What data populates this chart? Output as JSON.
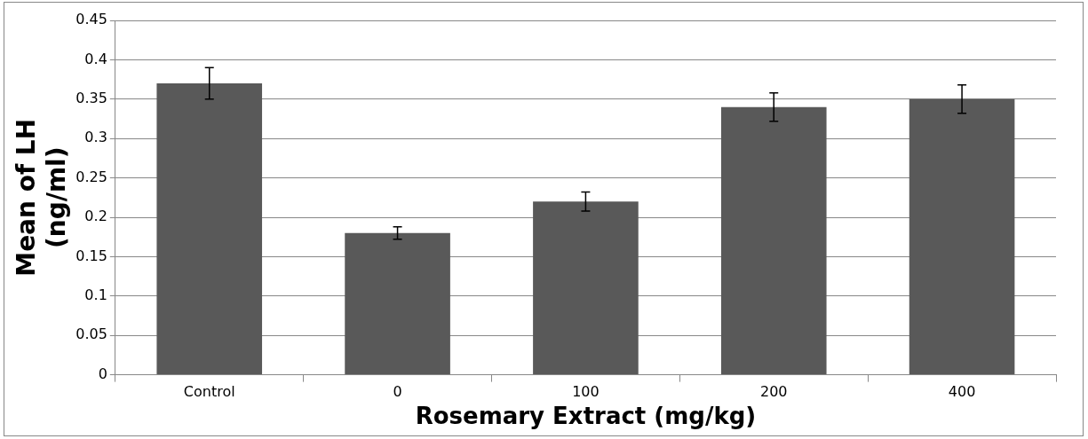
{
  "chart_data": {
    "type": "bar",
    "xlabel": "Rosemary Extract (mg/kg)",
    "ylabel": "Mean of LH (ng/ml)",
    "categories": [
      "Control",
      "0",
      "100",
      "200",
      "400"
    ],
    "values": [
      0.37,
      0.18,
      0.22,
      0.34,
      0.35
    ],
    "errors": [
      0.02,
      0.008,
      0.012,
      0.018,
      0.018
    ],
    "color": "#595959",
    "ylim": [
      0,
      0.45
    ],
    "yticks": [
      0,
      0.05,
      0.1,
      0.15,
      0.2,
      0.25,
      0.3,
      0.35,
      0.4,
      0.45
    ],
    "grid": "y",
    "legend": false
  }
}
